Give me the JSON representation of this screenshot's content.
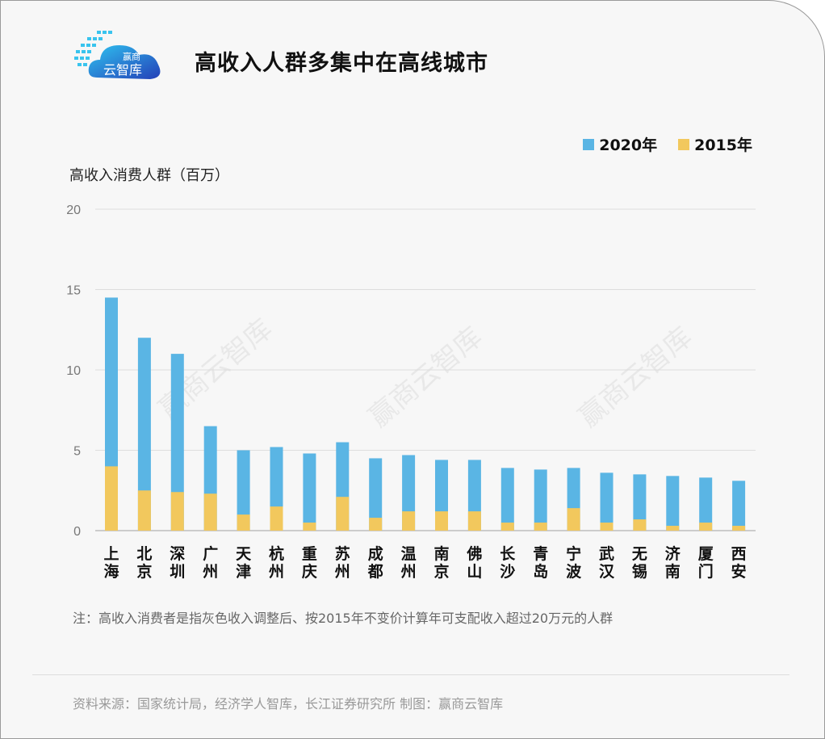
{
  "header": {
    "title": "高收入人群多集中在高线城市",
    "logo_text": [
      "赢商",
      "云智库"
    ]
  },
  "watermark": "赢商云智库",
  "chart_data": {
    "type": "bar",
    "stacked": "overlay",
    "title": "高收入人群多集中在高线城市",
    "ylabel": "高收入消费人群（百万）",
    "xlabel": "",
    "ylim": [
      0,
      20
    ],
    "yticks": [
      0,
      5,
      10,
      15,
      20
    ],
    "grid": true,
    "legend_position": "top-right",
    "categories": [
      "上海",
      "北京",
      "深圳",
      "广州",
      "天津",
      "杭州",
      "重庆",
      "苏州",
      "成都",
      "温州",
      "南京",
      "佛山",
      "长沙",
      "青岛",
      "宁波",
      "武汉",
      "无锡",
      "济南",
      "厦门",
      "西安"
    ],
    "series": [
      {
        "name": "2020年",
        "color": "#5ab5e4",
        "values": [
          14.5,
          12,
          11,
          6.5,
          5,
          5.2,
          4.8,
          5.5,
          4.5,
          4.7,
          4.4,
          4.4,
          3.9,
          3.8,
          3.9,
          3.6,
          3.5,
          3.4,
          3.3,
          3.1
        ]
      },
      {
        "name": "2015年",
        "color": "#f2c85d",
        "values": [
          4,
          2.5,
          2.4,
          2.3,
          1,
          1.5,
          0.5,
          2.1,
          0.8,
          1.2,
          1.2,
          1.2,
          0.5,
          0.5,
          1.4,
          0.5,
          0.7,
          0.3,
          0.5,
          0.3
        ]
      }
    ]
  },
  "footer": {
    "note": "注：高收入消费者是指灰色收入调整后、按2015年不变价计算年可支配收入超过20万元的人群",
    "source": "资料来源：国家统计局，经济学人智库，长江证券研究所  制图：赢商云智库"
  }
}
